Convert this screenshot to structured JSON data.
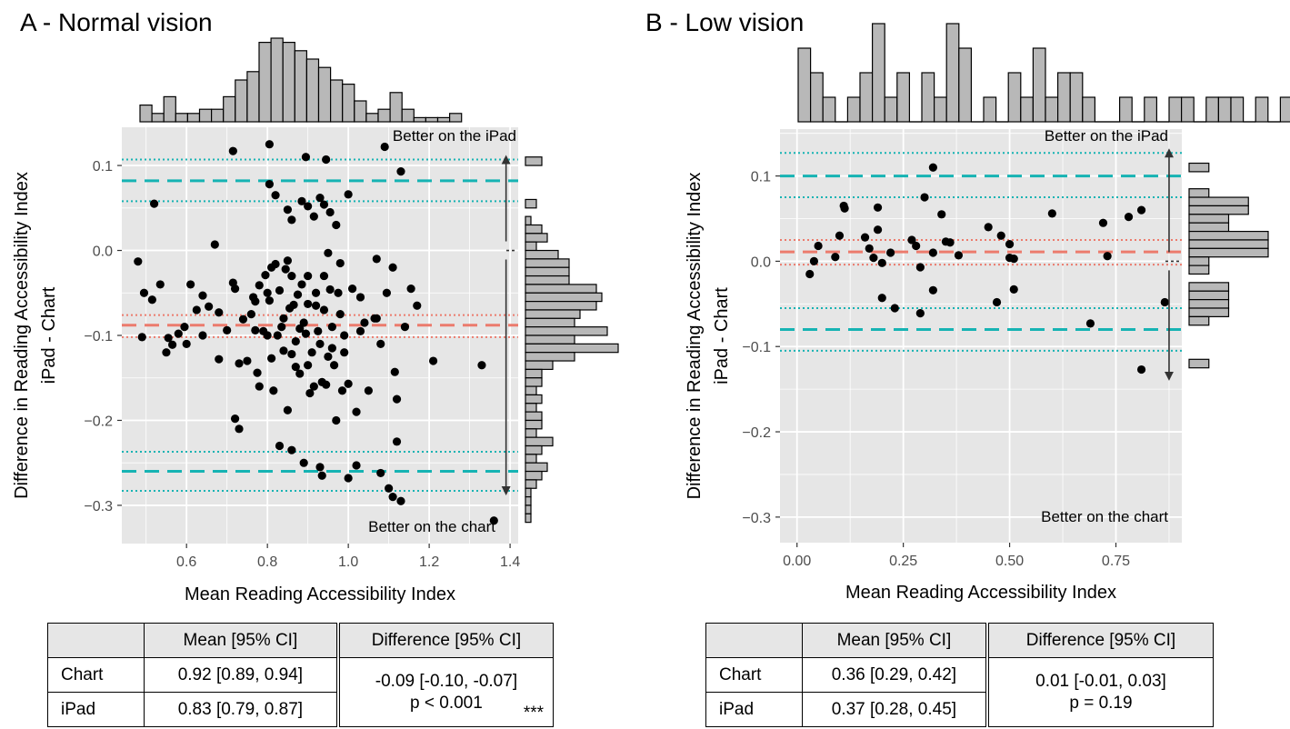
{
  "panels": [
    {
      "title": "A - Normal vision",
      "table": {
        "headers": [
          "",
          "Mean [95% CI]",
          "Difference [95% CI]"
        ],
        "rows": [
          {
            "label": "Chart",
            "mean": "0.92 [0.89, 0.94]"
          },
          {
            "label": "iPad",
            "mean": "0.83 [0.79, 0.87]"
          }
        ],
        "difference": "-0.09 [-0.10, -0.07]",
        "p_value": "p < 0.001",
        "significance": "***"
      }
    },
    {
      "title": "B - Low vision",
      "table": {
        "headers": [
          "",
          "Mean [95% CI]",
          "Difference [95% CI]"
        ],
        "rows": [
          {
            "label": "Chart",
            "mean": "0.36 [0.29, 0.42]"
          },
          {
            "label": "iPad",
            "mean": "0.37 [0.28, 0.45]"
          }
        ],
        "difference": "0.01 [-0.01, 0.03]",
        "p_value": "p = 0.19",
        "significance": ""
      }
    }
  ],
  "colors": {
    "panel_bg": "#e6e6e6",
    "grid": "#ffffff",
    "loa": "#16b3b3",
    "bias": "#ec7b6d",
    "points": "#000000",
    "hist_fill": "#b8b8b8"
  },
  "chart_data": [
    {
      "type": "scatter",
      "title": "A - Normal vision",
      "xlabel": "Mean Reading Accessibility Index",
      "ylabel": [
        "Difference in Reading Accessibility Index",
        "iPad - Chart"
      ],
      "xlim": [
        0.44,
        1.42
      ],
      "ylim": [
        -0.345,
        0.145
      ],
      "xticks": [
        0.6,
        0.8,
        1.0,
        1.2,
        1.4
      ],
      "xtick_labels": [
        "0.6",
        "0.8",
        "1.0",
        "1.2",
        "1.4"
      ],
      "yticks": [
        0.1,
        0.0,
        -0.1,
        -0.2,
        -0.3
      ],
      "ytick_labels": [
        "0.1",
        "0.0",
        "−0.1",
        "−0.2",
        "−0.3"
      ],
      "bias": -0.088,
      "bias_ci": [
        -0.076,
        -0.102
      ],
      "loa_upper": 0.082,
      "loa_upper_ci": [
        0.107,
        0.058
      ],
      "loa_lower": -0.26,
      "loa_lower_ci": [
        -0.237,
        -0.283
      ],
      "annotation_top": "Better on the iPad",
      "annotation_bottom": "Better on the chart",
      "arrow_x": 1.39,
      "points": [
        [
          0.52,
          0.055
        ],
        [
          0.715,
          0.117
        ],
        [
          0.805,
          0.125
        ],
        [
          0.805,
          0.078
        ],
        [
          0.895,
          0.11
        ],
        [
          0.945,
          0.107
        ],
        [
          1.09,
          0.122
        ],
        [
          1.13,
          0.093
        ],
        [
          0.48,
          -0.013
        ],
        [
          0.495,
          -0.05
        ],
        [
          0.49,
          -0.102
        ],
        [
          0.515,
          -0.058
        ],
        [
          0.535,
          -0.04
        ],
        [
          0.55,
          -0.12
        ],
        [
          0.555,
          -0.103
        ],
        [
          0.565,
          -0.111
        ],
        [
          0.58,
          -0.098
        ],
        [
          0.595,
          -0.09
        ],
        [
          0.61,
          -0.04
        ],
        [
          0.625,
          -0.07
        ],
        [
          0.64,
          -0.053
        ],
        [
          0.655,
          -0.066
        ],
        [
          0.67,
          0.007
        ],
        [
          0.68,
          -0.128
        ],
        [
          0.7,
          -0.094
        ],
        [
          0.715,
          -0.038
        ],
        [
          0.72,
          -0.198
        ],
        [
          0.73,
          -0.133
        ],
        [
          0.74,
          -0.081
        ],
        [
          0.75,
          -0.13
        ],
        [
          0.765,
          -0.055
        ],
        [
          0.77,
          -0.094
        ],
        [
          0.775,
          -0.144
        ],
        [
          0.78,
          -0.041
        ],
        [
          0.79,
          -0.095
        ],
        [
          0.795,
          -0.029
        ],
        [
          0.8,
          -0.1
        ],
        [
          0.805,
          -0.059
        ],
        [
          0.81,
          -0.127
        ],
        [
          0.815,
          -0.165
        ],
        [
          0.82,
          -0.016
        ],
        [
          0.825,
          -0.1
        ],
        [
          0.83,
          -0.047
        ],
        [
          0.835,
          -0.09
        ],
        [
          0.84,
          -0.118
        ],
        [
          0.845,
          -0.022
        ],
        [
          0.85,
          -0.188
        ],
        [
          0.855,
          -0.068
        ],
        [
          0.86,
          -0.122
        ],
        [
          0.865,
          -0.064
        ],
        [
          0.87,
          -0.137
        ],
        [
          0.875,
          -0.052
        ],
        [
          0.88,
          -0.145
        ],
        [
          0.885,
          -0.04
        ],
        [
          0.89,
          -0.085
        ],
        [
          0.895,
          -0.098
        ],
        [
          0.9,
          -0.135
        ],
        [
          0.905,
          -0.168
        ],
        [
          0.91,
          -0.12
        ],
        [
          0.915,
          -0.16
        ],
        [
          0.92,
          -0.065
        ],
        [
          0.925,
          -0.095
        ],
        [
          0.93,
          -0.11
        ],
        [
          0.935,
          -0.155
        ],
        [
          0.94,
          -0.07
        ],
        [
          0.945,
          -0.158
        ],
        [
          0.95,
          -0.125
        ],
        [
          0.955,
          -0.046
        ],
        [
          0.96,
          -0.09
        ],
        [
          0.965,
          -0.135
        ],
        [
          0.97,
          -0.2
        ],
        [
          0.975,
          -0.05
        ],
        [
          0.98,
          -0.075
        ],
        [
          0.985,
          -0.165
        ],
        [
          0.99,
          -0.1
        ],
        [
          1.0,
          -0.157
        ],
        [
          1.01,
          -0.045
        ],
        [
          1.02,
          -0.19
        ],
        [
          1.03,
          -0.055
        ],
        [
          1.04,
          -0.085
        ],
        [
          1.05,
          -0.165
        ],
        [
          1.065,
          -0.08
        ],
        [
          1.07,
          -0.01
        ],
        [
          1.08,
          -0.11
        ],
        [
          1.095,
          -0.05
        ],
        [
          1.11,
          -0.02
        ],
        [
          1.115,
          -0.143
        ],
        [
          1.12,
          -0.225
        ],
        [
          1.14,
          -0.09
        ],
        [
          1.155,
          -0.045
        ],
        [
          1.17,
          -0.065
        ],
        [
          1.21,
          -0.13
        ],
        [
          1.33,
          -0.135
        ],
        [
          0.82,
          0.065
        ],
        [
          0.85,
          0.048
        ],
        [
          0.86,
          0.036
        ],
        [
          0.885,
          0.058
        ],
        [
          0.9,
          0.052
        ],
        [
          0.915,
          0.04
        ],
        [
          0.93,
          0.062
        ],
        [
          0.94,
          0.054
        ],
        [
          0.955,
          0.045
        ],
        [
          0.97,
          0.03
        ],
        [
          1.0,
          0.066
        ],
        [
          0.9,
          -0.03
        ],
        [
          1.07,
          -0.08
        ],
        [
          0.78,
          -0.16
        ],
        [
          0.83,
          -0.23
        ],
        [
          0.86,
          -0.235
        ],
        [
          0.89,
          -0.25
        ],
        [
          0.93,
          -0.255
        ],
        [
          0.935,
          -0.265
        ],
        [
          1.0,
          -0.268
        ],
        [
          1.02,
          -0.253
        ],
        [
          1.08,
          -0.262
        ],
        [
          1.1,
          -0.28
        ],
        [
          1.11,
          -0.29
        ],
        [
          1.13,
          -0.295
        ],
        [
          1.36,
          -0.318
        ],
        [
          0.73,
          -0.21
        ],
        [
          0.77,
          -0.06
        ],
        [
          0.81,
          -0.02
        ],
        [
          0.85,
          -0.012
        ],
        [
          0.95,
          -0.003
        ],
        [
          0.98,
          -0.015
        ],
        [
          0.72,
          -0.045
        ],
        [
          0.76,
          -0.075
        ],
        [
          0.8,
          -0.05
        ],
        [
          0.84,
          -0.08
        ],
        [
          0.87,
          -0.107
        ],
        [
          0.9,
          -0.063
        ],
        [
          0.94,
          -0.03
        ],
        [
          0.99,
          -0.12
        ],
        [
          1.03,
          -0.095
        ],
        [
          0.68,
          -0.073
        ],
        [
          0.64,
          -0.1
        ],
        [
          0.6,
          -0.11
        ],
        [
          0.86,
          -0.03
        ],
        [
          0.88,
          -0.092
        ],
        [
          0.92,
          -0.05
        ],
        [
          0.96,
          -0.115
        ],
        [
          1.12,
          -0.175
        ]
      ],
      "x_hist": [
        4,
        2,
        6,
        2,
        2,
        3,
        3,
        6,
        10,
        12,
        19,
        20,
        19,
        17,
        15,
        13,
        10,
        9,
        5,
        2,
        3,
        7,
        3,
        1,
        1,
        1,
        2
      ],
      "y_hist": [
        {
          "y0": 0.11,
          "y1": 0.1,
          "n": 3
        },
        {
          "y0": 0.1,
          "y1": 0.09,
          "n": 0
        },
        {
          "y0": 0.09,
          "y1": 0.08,
          "n": 0
        },
        {
          "y0": 0.07,
          "y1": 0.06,
          "n": 0
        },
        {
          "y0": 0.06,
          "y1": 0.05,
          "n": 2
        },
        {
          "y0": 0.04,
          "y1": 0.03,
          "n": 1
        },
        {
          "y0": 0.03,
          "y1": 0.02,
          "n": 3
        },
        {
          "y0": 0.02,
          "y1": 0.01,
          "n": 4
        },
        {
          "y0": 0.01,
          "y1": 0.0,
          "n": 2
        },
        {
          "y0": 0.0,
          "y1": -0.01,
          "n": 6
        },
        {
          "y0": -0.01,
          "y1": -0.02,
          "n": 8
        },
        {
          "y0": -0.02,
          "y1": -0.03,
          "n": 8
        },
        {
          "y0": -0.03,
          "y1": -0.04,
          "n": 8
        },
        {
          "y0": -0.04,
          "y1": -0.05,
          "n": 13
        },
        {
          "y0": -0.05,
          "y1": -0.06,
          "n": 14
        },
        {
          "y0": -0.06,
          "y1": -0.07,
          "n": 13
        },
        {
          "y0": -0.07,
          "y1": -0.08,
          "n": 10
        },
        {
          "y0": -0.08,
          "y1": -0.09,
          "n": 9
        },
        {
          "y0": -0.09,
          "y1": -0.1,
          "n": 15
        },
        {
          "y0": -0.1,
          "y1": -0.11,
          "n": 9
        },
        {
          "y0": -0.11,
          "y1": -0.12,
          "n": 17
        },
        {
          "y0": -0.12,
          "y1": -0.13,
          "n": 9
        },
        {
          "y0": -0.13,
          "y1": -0.14,
          "n": 5
        },
        {
          "y0": -0.14,
          "y1": -0.15,
          "n": 3
        },
        {
          "y0": -0.15,
          "y1": -0.16,
          "n": 3
        },
        {
          "y0": -0.16,
          "y1": -0.17,
          "n": 2
        },
        {
          "y0": -0.17,
          "y1": -0.18,
          "n": 3
        },
        {
          "y0": -0.18,
          "y1": -0.19,
          "n": 2
        },
        {
          "y0": -0.19,
          "y1": -0.2,
          "n": 3
        },
        {
          "y0": -0.2,
          "y1": -0.21,
          "n": 3
        },
        {
          "y0": -0.21,
          "y1": -0.22,
          "n": 2
        },
        {
          "y0": -0.22,
          "y1": -0.23,
          "n": 5
        },
        {
          "y0": -0.23,
          "y1": -0.24,
          "n": 3
        },
        {
          "y0": -0.24,
          "y1": -0.25,
          "n": 2
        },
        {
          "y0": -0.25,
          "y1": -0.26,
          "n": 4
        },
        {
          "y0": -0.26,
          "y1": -0.27,
          "n": 3
        },
        {
          "y0": -0.27,
          "y1": -0.28,
          "n": 2
        },
        {
          "y0": -0.28,
          "y1": -0.29,
          "n": 1
        },
        {
          "y0": -0.29,
          "y1": -0.3,
          "n": 1
        },
        {
          "y0": -0.3,
          "y1": -0.31,
          "n": 1
        },
        {
          "y0": -0.31,
          "y1": -0.32,
          "n": 1
        }
      ]
    },
    {
      "type": "scatter",
      "title": "B - Low vision",
      "xlabel": "Mean Reading Accessibility Index",
      "ylabel": [
        "Difference in Reading Accessibility Index",
        "iPad - Chart"
      ],
      "xlim": [
        -0.04,
        0.905
      ],
      "ylim": [
        -0.33,
        0.155
      ],
      "xticks": [
        0.0,
        0.25,
        0.5,
        0.75
      ],
      "xtick_labels": [
        "0.00",
        "0.25",
        "0.50",
        "0.75"
      ],
      "yticks": [
        0.1,
        0.0,
        -0.1,
        -0.2,
        -0.3
      ],
      "ytick_labels": [
        "0.1",
        "0.0",
        "−0.1",
        "−0.2",
        "−0.3"
      ],
      "bias": 0.011,
      "bias_ci": [
        0.025,
        -0.004
      ],
      "loa_upper": 0.1,
      "loa_upper_ci": [
        0.127,
        0.075
      ],
      "loa_lower": -0.08,
      "loa_lower_ci": [
        -0.055,
        -0.105
      ],
      "annotation_top": "Better on the iPad",
      "annotation_bottom": "Better on the chart",
      "arrow_x": 0.875,
      "points": [
        [
          0.03,
          -0.015
        ],
        [
          0.04,
          0.0
        ],
        [
          0.05,
          0.018
        ],
        [
          0.09,
          0.005
        ],
        [
          0.1,
          0.03
        ],
        [
          0.11,
          0.065
        ],
        [
          0.112,
          0.062
        ],
        [
          0.16,
          0.028
        ],
        [
          0.17,
          0.015
        ],
        [
          0.18,
          0.004
        ],
        [
          0.19,
          0.063
        ],
        [
          0.19,
          0.037
        ],
        [
          0.2,
          -0.002
        ],
        [
          0.2,
          -0.043
        ],
        [
          0.22,
          0.01
        ],
        [
          0.23,
          -0.055
        ],
        [
          0.27,
          0.025
        ],
        [
          0.28,
          0.018
        ],
        [
          0.29,
          -0.007
        ],
        [
          0.29,
          -0.061
        ],
        [
          0.3,
          0.075
        ],
        [
          0.32,
          0.11
        ],
        [
          0.32,
          0.01
        ],
        [
          0.32,
          -0.034
        ],
        [
          0.34,
          0.055
        ],
        [
          0.35,
          0.023
        ],
        [
          0.36,
          0.022
        ],
        [
          0.38,
          0.007
        ],
        [
          0.45,
          0.04
        ],
        [
          0.47,
          -0.048
        ],
        [
          0.48,
          0.03
        ],
        [
          0.5,
          0.02
        ],
        [
          0.5,
          0.004
        ],
        [
          0.51,
          0.003
        ],
        [
          0.51,
          -0.033
        ],
        [
          0.6,
          0.056
        ],
        [
          0.69,
          -0.073
        ],
        [
          0.72,
          0.045
        ],
        [
          0.73,
          0.006
        ],
        [
          0.78,
          0.052
        ],
        [
          0.81,
          0.06
        ],
        [
          0.81,
          -0.127
        ],
        [
          0.865,
          -0.048
        ]
      ],
      "x_hist": [
        3,
        2,
        1,
        0,
        1,
        2,
        4,
        1,
        2,
        0,
        2,
        1,
        4,
        3,
        0,
        1,
        0,
        2,
        1,
        3,
        1,
        2,
        2,
        1,
        0,
        0,
        1,
        0,
        1,
        0,
        1,
        1,
        0,
        1,
        1,
        1,
        0,
        1,
        0,
        1
      ],
      "y_hist": [
        {
          "y0": 0.115,
          "y1": 0.105,
          "n": 1
        },
        {
          "y0": 0.105,
          "y1": 0.095,
          "n": 0
        },
        {
          "y0": 0.085,
          "y1": 0.075,
          "n": 1
        },
        {
          "y0": 0.075,
          "y1": 0.065,
          "n": 3
        },
        {
          "y0": 0.065,
          "y1": 0.055,
          "n": 3
        },
        {
          "y0": 0.055,
          "y1": 0.045,
          "n": 2
        },
        {
          "y0": 0.045,
          "y1": 0.035,
          "n": 2
        },
        {
          "y0": 0.035,
          "y1": 0.025,
          "n": 4
        },
        {
          "y0": 0.025,
          "y1": 0.015,
          "n": 4
        },
        {
          "y0": 0.015,
          "y1": 0.005,
          "n": 4
        },
        {
          "y0": 0.005,
          "y1": -0.005,
          "n": 1
        },
        {
          "y0": -0.005,
          "y1": -0.015,
          "n": 1
        },
        {
          "y0": -0.025,
          "y1": -0.035,
          "n": 2
        },
        {
          "y0": -0.035,
          "y1": -0.045,
          "n": 2
        },
        {
          "y0": -0.045,
          "y1": -0.055,
          "n": 2
        },
        {
          "y0": -0.055,
          "y1": -0.065,
          "n": 2
        },
        {
          "y0": -0.065,
          "y1": -0.075,
          "n": 1
        },
        {
          "y0": -0.115,
          "y1": -0.125,
          "n": 1
        }
      ]
    }
  ]
}
